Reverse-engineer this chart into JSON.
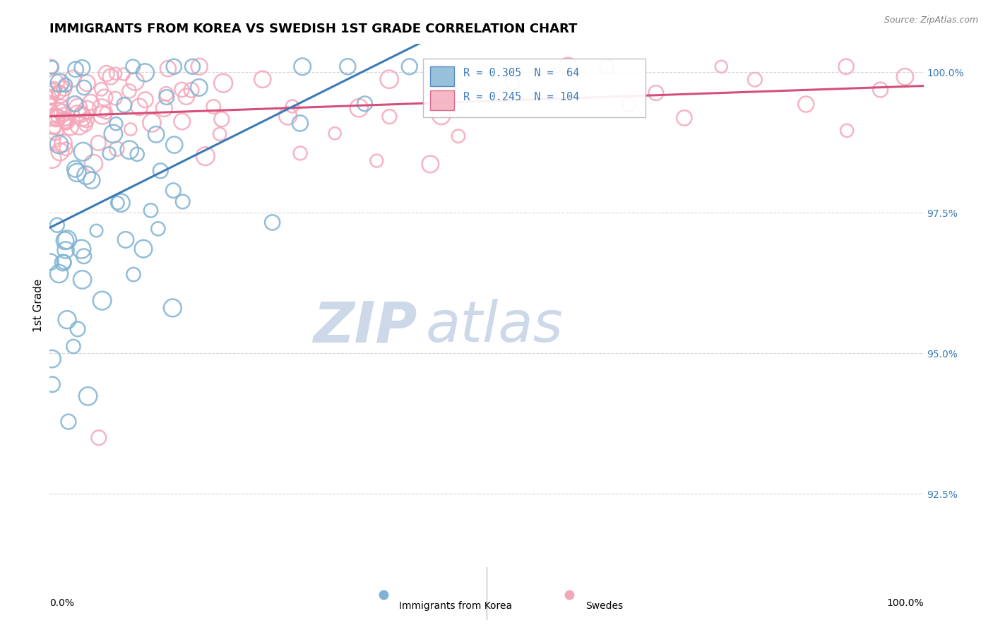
{
  "title": "IMMIGRANTS FROM KOREA VS SWEDISH 1ST GRADE CORRELATION CHART",
  "source": "Source: ZipAtlas.com",
  "ylabel": "1st Grade",
  "watermark_zip": "ZIP",
  "watermark_atlas": "atlas",
  "legend_korea": "Immigrants from Korea",
  "legend_swedes": "Swedes",
  "r_korea": 0.305,
  "n_korea": 64,
  "r_swedes": 0.245,
  "n_swedes": 104,
  "korea_color": "#7fb3d3",
  "swedes_color": "#f4a7b9",
  "korea_line_color": "#3a7ab8",
  "swedes_line_color": "#d44f7a",
  "right_ytick_labels": [
    "92.5%",
    "95.0%",
    "97.5%",
    "100.0%"
  ],
  "right_ytick_values": [
    0.925,
    0.95,
    0.975,
    1.0
  ],
  "ylim_min": 0.912,
  "ylim_max": 1.005,
  "background_color": "#ffffff",
  "watermark_color": "#cdd8e8",
  "grid_color": "#cccccc"
}
